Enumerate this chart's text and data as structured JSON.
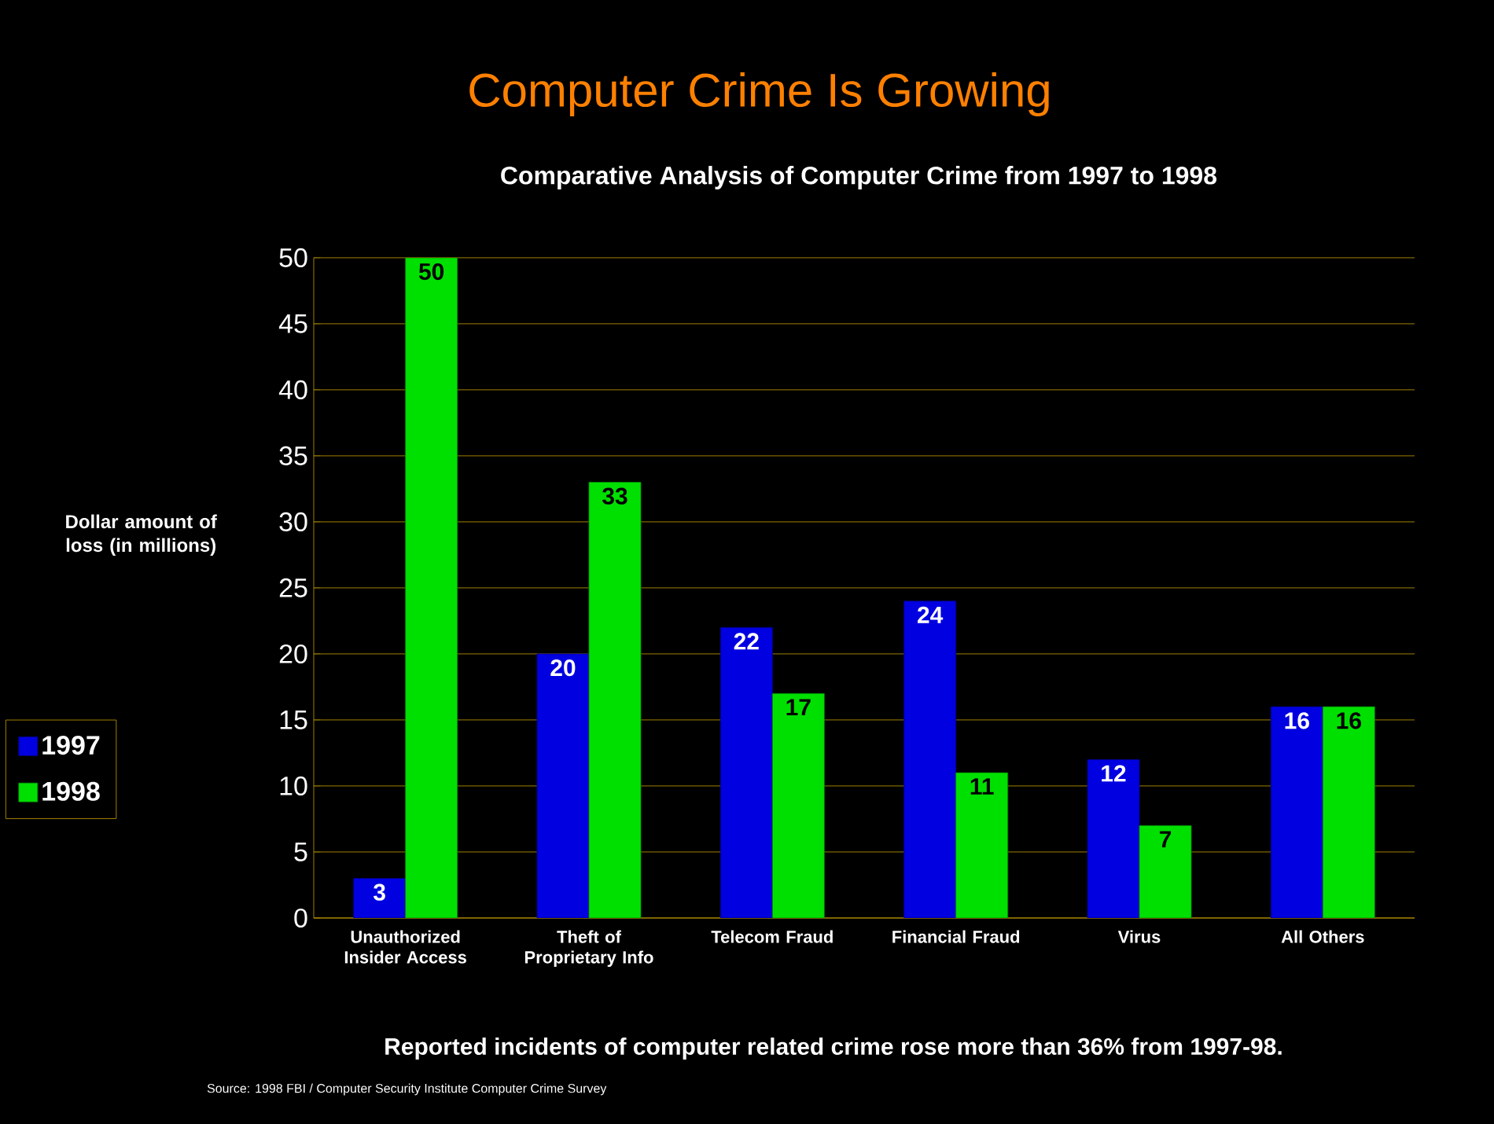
{
  "chart_data": {
    "type": "bar",
    "title": "Computer Crime Is Growing",
    "subtitle": "Comparative Analysis of Computer Crime from 1997 to 1998",
    "ylabel": "Dollar amount of loss (in millions)",
    "categories": [
      "Unauthorized Insider Access",
      "Theft of Proprietary Info",
      "Telecom Fraud",
      "Financial Fraud",
      "Virus",
      "All Others"
    ],
    "series": [
      {
        "name": "1997",
        "color": "#0000e0",
        "values": [
          3,
          20,
          22,
          24,
          12,
          16
        ]
      },
      {
        "name": "1998",
        "color": "#00e000",
        "values": [
          50,
          33,
          17,
          11,
          7,
          16
        ]
      }
    ],
    "ylim": [
      0,
      50
    ],
    "yticks": [
      0,
      5,
      10,
      15,
      20,
      25,
      30,
      35,
      40,
      45,
      50
    ],
    "grid": "y",
    "legend": "left",
    "data_labels": true,
    "annotations": [
      "Reported incidents of computer related crime rose more than 36% from 1997-98.",
      "Source: 1998 FBI / Computer Security Institute Computer Crime Survey"
    ]
  }
}
